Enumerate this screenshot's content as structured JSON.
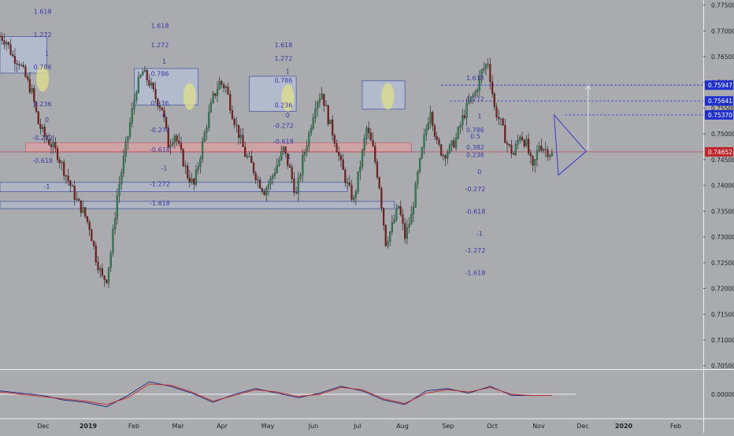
{
  "colors": {
    "background": "#a9abae",
    "up_candle": "#2e8b57",
    "down_candle": "#8b1a1a",
    "wick": "#2b2b2b",
    "fib_text": "#3a3aa8",
    "zone_fill": "#b9c9e6",
    "zone_stroke": "#4b5fa3",
    "support_fill": "#dba0a3",
    "highlight_circle": "#e0df8a",
    "price_label_blue": "#1f2fd0",
    "price_label_red": "#c0272d",
    "osc_line_1": "#1a237e",
    "osc_line_2": "#c62828"
  },
  "chart_data": [
    {
      "type": "candlestick",
      "title": "",
      "y_axis_labels": [
        "0.77500",
        "0.77000",
        "0.76500",
        "0.76000",
        "0.75500",
        "0.75000",
        "0.74500",
        "0.74000",
        "0.73500",
        "0.73000",
        "0.72500",
        "0.72000",
        "0.71500",
        "0.71000",
        "0.70500"
      ],
      "ylim": [
        0.7045,
        0.776
      ],
      "x_axis_labels": [
        "Dec",
        "2019",
        "Feb",
        "Mar",
        "Apr",
        "May",
        "Jun",
        "Jul",
        "Aug",
        "Sep",
        "Oct",
        "Nov",
        "Dec",
        "2020",
        "Feb"
      ],
      "price_labels": [
        {
          "value": "0.75947",
          "style": "blue"
        },
        {
          "value": "0.75641",
          "style": "blue"
        },
        {
          "value": "0.75370",
          "style": "blue"
        },
        {
          "value": "0.74652",
          "style": "red"
        }
      ],
      "key_levels": [
        0.75947,
        0.75641,
        0.7537,
        0.74652
      ],
      "close_path": [
        [
          0,
          0.769
        ],
        [
          3,
          0.768
        ],
        [
          6,
          0.765
        ],
        [
          9,
          0.764
        ],
        [
          12,
          0.761
        ],
        [
          15,
          0.758
        ],
        [
          18,
          0.752
        ],
        [
          21,
          0.7495
        ],
        [
          24,
          0.748
        ],
        [
          27,
          0.746
        ],
        [
          30,
          0.743
        ],
        [
          33,
          0.74
        ],
        [
          36,
          0.737
        ],
        [
          39,
          0.735
        ],
        [
          42,
          0.732
        ],
        [
          45,
          0.726
        ],
        [
          48,
          0.722
        ],
        [
          50,
          0.722
        ],
        [
          52,
          0.727
        ],
        [
          55,
          0.738
        ],
        [
          58,
          0.745
        ],
        [
          61,
          0.752
        ],
        [
          64,
          0.759
        ],
        [
          67,
          0.762
        ],
        [
          70,
          0.76
        ],
        [
          73,
          0.757
        ],
        [
          76,
          0.755
        ],
        [
          79,
          0.748
        ],
        [
          82,
          0.75
        ],
        [
          85,
          0.746
        ],
        [
          88,
          0.742
        ],
        [
          91,
          0.74
        ],
        [
          94,
          0.746
        ],
        [
          97,
          0.752
        ],
        [
          100,
          0.757
        ],
        [
          103,
          0.76
        ],
        [
          106,
          0.759
        ],
        [
          109,
          0.754
        ],
        [
          112,
          0.75
        ],
        [
          115,
          0.746
        ],
        [
          118,
          0.744
        ],
        [
          121,
          0.741
        ],
        [
          124,
          0.739
        ],
        [
          127,
          0.741
        ],
        [
          130,
          0.744
        ],
        [
          133,
          0.747
        ],
        [
          136,
          0.743
        ],
        [
          139,
          0.738
        ],
        [
          142,
          0.745
        ],
        [
          145,
          0.75
        ],
        [
          148,
          0.756
        ],
        [
          151,
          0.758
        ],
        [
          154,
          0.753
        ],
        [
          157,
          0.749
        ],
        [
          160,
          0.744
        ],
        [
          163,
          0.74
        ],
        [
          166,
          0.737
        ],
        [
          169,
          0.744
        ],
        [
          172,
          0.751
        ],
        [
          175,
          0.747
        ],
        [
          178,
          0.74
        ],
        [
          181,
          0.729
        ],
        [
          184,
          0.732
        ],
        [
          187,
          0.736
        ],
        [
          190,
          0.73
        ],
        [
          193,
          0.734
        ],
        [
          196,
          0.742
        ],
        [
          199,
          0.749
        ],
        [
          202,
          0.755
        ],
        [
          205,
          0.748
        ],
        [
          208,
          0.746
        ],
        [
          211,
          0.747
        ],
        [
          214,
          0.749
        ],
        [
          217,
          0.753
        ],
        [
          220,
          0.756
        ],
        [
          223,
          0.758
        ],
        [
          226,
          0.762
        ],
        [
          229,
          0.764
        ],
        [
          232,
          0.755
        ],
        [
          235,
          0.752
        ],
        [
          238,
          0.748
        ],
        [
          241,
          0.746
        ],
        [
          244,
          0.75
        ],
        [
          247,
          0.748
        ],
        [
          250,
          0.743
        ],
        [
          253,
          0.748
        ],
        [
          256,
          0.747
        ],
        [
          259,
          0.746
        ]
      ],
      "fib_labels": [
        {
          "text": "1.618",
          "x": 20,
          "y": 0.7738
        },
        {
          "text": "1.272",
          "x": 20,
          "y": 0.7693
        },
        {
          "text": "1",
          "x": 22,
          "y": 0.7657
        },
        {
          "text": "0.786",
          "x": 20,
          "y": 0.763
        },
        {
          "text": "0.236",
          "x": 20,
          "y": 0.7558
        },
        {
          "text": "0",
          "x": 22,
          "y": 0.7528
        },
        {
          "text": "-0.272",
          "x": 20,
          "y": 0.7493
        },
        {
          "text": "-0.618",
          "x": 20,
          "y": 0.7448
        },
        {
          "text": "-1",
          "x": 22,
          "y": 0.7398
        },
        {
          "text": "1.618",
          "x": 75,
          "y": 0.771
        },
        {
          "text": "1.272",
          "x": 75,
          "y": 0.7673
        },
        {
          "text": "1",
          "x": 77,
          "y": 0.7641
        },
        {
          "text": "0.786",
          "x": 75,
          "y": 0.7617
        },
        {
          "text": "0.236",
          "x": 75,
          "y": 0.756
        },
        {
          "text": "0",
          "x": 77,
          "y": 0.7536
        },
        {
          "text": "-0.272",
          "x": 75,
          "y": 0.7508
        },
        {
          "text": "-0.618",
          "x": 75,
          "y": 0.747
        },
        {
          "text": "-1",
          "x": 77,
          "y": 0.7434
        },
        {
          "text": "-1.272",
          "x": 75,
          "y": 0.7403
        },
        {
          "text": "-1.618",
          "x": 75,
          "y": 0.7366
        },
        {
          "text": "1.618",
          "x": 133,
          "y": 0.7673
        },
        {
          "text": "1.272",
          "x": 133,
          "y": 0.7647
        },
        {
          "text": "1",
          "x": 135,
          "y": 0.7622
        },
        {
          "text": "0.786",
          "x": 133,
          "y": 0.7604
        },
        {
          "text": "0.236",
          "x": 133,
          "y": 0.7556
        },
        {
          "text": "0",
          "x": 135,
          "y": 0.7537
        },
        {
          "text": "-0.272",
          "x": 133,
          "y": 0.7516
        },
        {
          "text": "-0.618",
          "x": 133,
          "y": 0.7486
        },
        {
          "text": "-1",
          "x": 135,
          "y": 0.7456
        },
        {
          "text": "1.618",
          "x": 223,
          "y": 0.7609
        },
        {
          "text": "1.272",
          "x": 223,
          "y": 0.7568
        },
        {
          "text": "1",
          "x": 225,
          "y": 0.7535
        },
        {
          "text": "0.786",
          "x": 223,
          "y": 0.7508
        },
        {
          "text": "0.5",
          "x": 223,
          "y": 0.7496
        },
        {
          "text": "0.382",
          "x": 223,
          "y": 0.7474
        },
        {
          "text": "0.236",
          "x": 223,
          "y": 0.746
        },
        {
          "text": "0",
          "x": 225,
          "y": 0.7427
        },
        {
          "text": "-0.272",
          "x": 223,
          "y": 0.7393
        },
        {
          "text": "-0.618",
          "x": 223,
          "y": 0.735
        },
        {
          "text": "-1",
          "x": 225,
          "y": 0.7307
        },
        {
          "text": "-1.272",
          "x": 223,
          "y": 0.7274
        },
        {
          "text": "-1.618",
          "x": 223,
          "y": 0.7231
        }
      ]
    },
    {
      "type": "line",
      "y_axis_labels": [
        "0.00000"
      ],
      "ylim": [
        -1,
        1
      ],
      "x": [
        0,
        10,
        20,
        30,
        40,
        50,
        60,
        70,
        80,
        90,
        100,
        110,
        120,
        130,
        140,
        150,
        160,
        170,
        180,
        190,
        200,
        210,
        220,
        230,
        240,
        250,
        259
      ],
      "series": [
        {
          "values": [
            0.15,
            0.05,
            -0.05,
            -0.25,
            -0.35,
            -0.55,
            -0.05,
            0.55,
            0.35,
            0.05,
            -0.35,
            0.0,
            0.25,
            0.05,
            -0.15,
            0.05,
            0.35,
            0.15,
            -0.25,
            -0.45,
            0.15,
            0.25,
            0.05,
            0.35,
            -0.05,
            -0.05,
            -0.05
          ]
        },
        {
          "values": [
            0.1,
            0.0,
            -0.1,
            -0.2,
            -0.3,
            -0.45,
            -0.15,
            0.45,
            0.4,
            0.1,
            -0.3,
            -0.05,
            0.2,
            0.1,
            -0.1,
            0.0,
            0.3,
            0.2,
            -0.2,
            -0.4,
            0.05,
            0.2,
            0.1,
            0.3,
            0.0,
            -0.05,
            -0.05
          ]
        }
      ]
    }
  ]
}
